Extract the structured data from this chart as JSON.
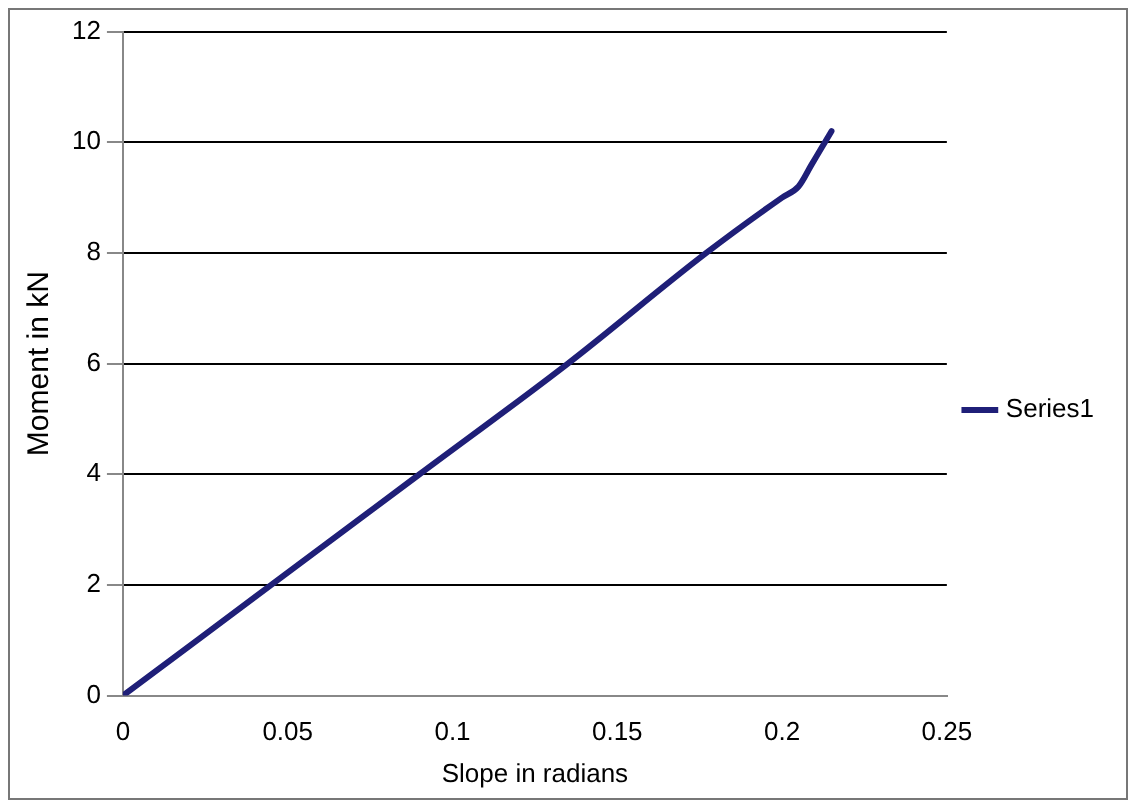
{
  "chart_data": {
    "type": "line",
    "xlabel": "Slope in radians",
    "ylabel": "Moment in kN",
    "x": [
      0,
      0.045,
      0.09,
      0.135,
      0.177,
      0.2,
      0.205,
      0.209,
      0.212,
      0.215
    ],
    "series": [
      {
        "name": "Series1",
        "color": "#1f1f78",
        "values": [
          0,
          2,
          4,
          6,
          8,
          9,
          9.2,
          9.6,
          9.9,
          10.2
        ]
      }
    ],
    "xlim": [
      0,
      0.25
    ],
    "xticks": [
      0,
      0.05,
      0.1,
      0.15,
      0.2,
      0.25
    ],
    "ylim": [
      0,
      12
    ],
    "yticks": [
      0,
      2,
      4,
      6,
      8,
      10,
      12
    ],
    "grid": "y",
    "legend": "right",
    "marker": "none",
    "line_style": "solid"
  }
}
